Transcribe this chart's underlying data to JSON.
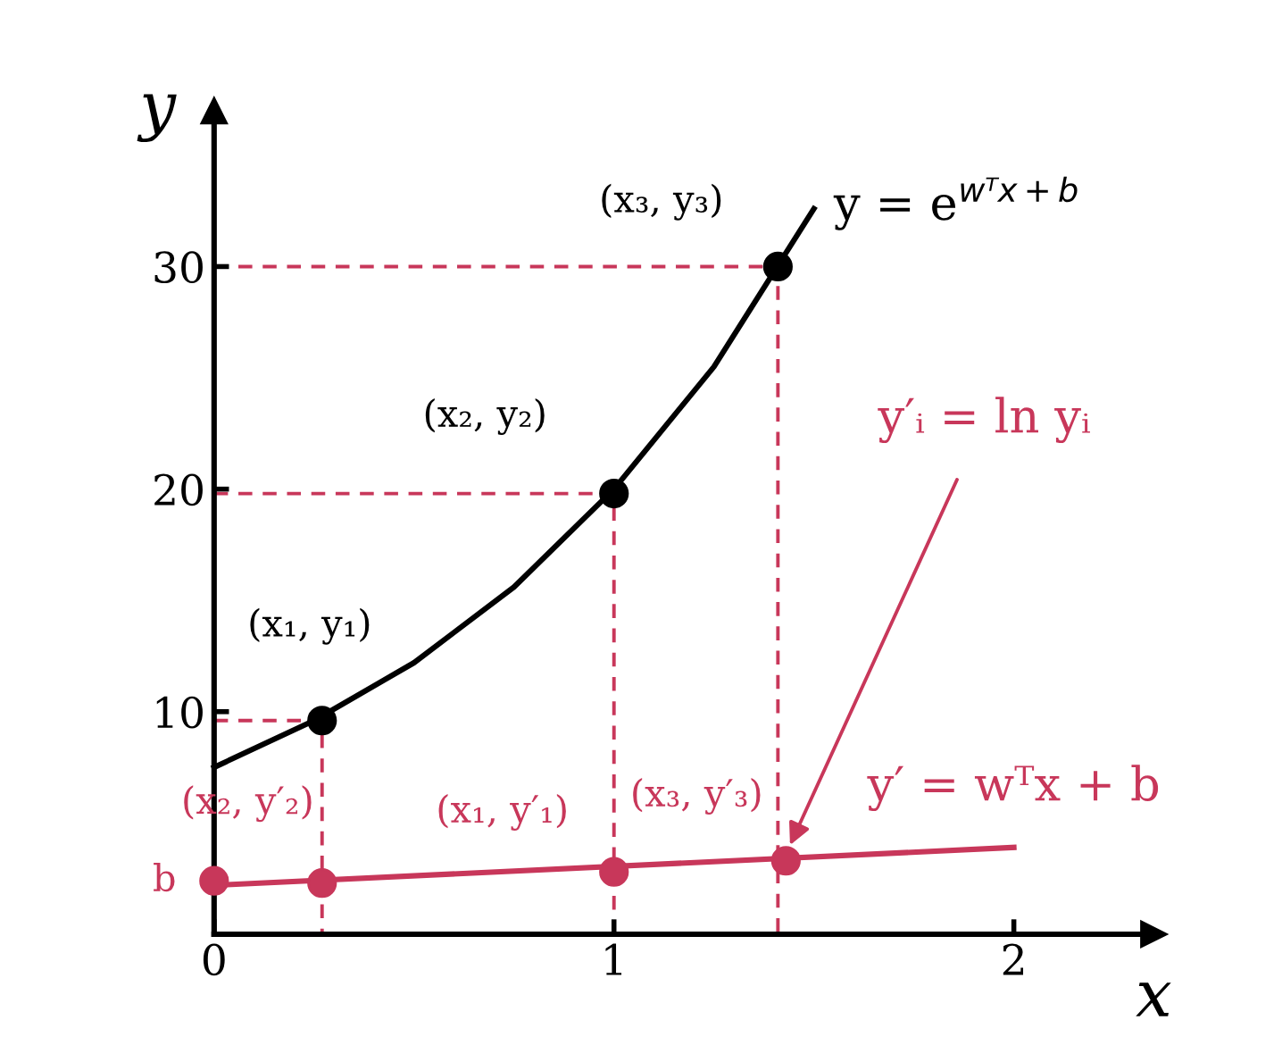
{
  "chart_data": {
    "type": "line",
    "xlabel": "x",
    "ylabel": "y",
    "xlim": [
      0,
      2.35
    ],
    "ylim": [
      0,
      37
    ],
    "xticks": [
      0,
      1,
      2
    ],
    "yticks": [
      10,
      20,
      30
    ],
    "grid": false,
    "legend": false,
    "series": [
      {
        "color": "#000000",
        "x": [
          0,
          0.25,
          0.5,
          0.75,
          1.0,
          1.25,
          1.5
        ],
        "values": [
          7.5,
          9.6,
          12.2,
          15.6,
          20.0,
          25.5,
          32.6
        ]
      },
      {
        "type": "scatter",
        "marker": "circle",
        "color": "#000000",
        "x": [
          0.27,
          1.0,
          1.41
        ],
        "values": [
          9.6,
          19.8,
          30
        ]
      },
      {
        "color": "#c8375a",
        "x": [
          0,
          2
        ],
        "values": [
          2.2,
          3.9
        ]
      },
      {
        "type": "scatter",
        "marker": "circle",
        "color": "#c8375a",
        "x": [
          0,
          0.27,
          1.0,
          1.43
        ],
        "values": [
          2.4,
          2.3,
          2.8,
          3.3
        ]
      },
      {
        "type": "line",
        "line_style": "dashed",
        "color": "#c8375a",
        "x": [
          0,
          0.27,
          0.27
        ],
        "values": [
          9.6,
          9.6,
          0
        ]
      },
      {
        "type": "line",
        "line_style": "dashed",
        "color": "#c8375a",
        "x": [
          0,
          1.0,
          1.0
        ],
        "values": [
          19.8,
          19.8,
          0
        ]
      },
      {
        "type": "line",
        "line_style": "dashed",
        "color": "#c8375a",
        "x": [
          0,
          1.41,
          1.41
        ],
        "values": [
          30,
          30,
          0
        ]
      }
    ],
    "annotations": [
      {
        "text": "(x₁, y₁)",
        "x": 0.27,
        "y": 9.6
      },
      {
        "text": "(x₂, y₂)",
        "x": 1.0,
        "y": 19.8
      },
      {
        "text": "(x₃, y₃)",
        "x": 1.41,
        "y": 30
      },
      {
        "text": "y = e$^{wᵀx+b}$",
        "x": 1.5,
        "y": 32.6
      },
      {
        "text": "(x₂, y′₂)",
        "x": 0.27,
        "y": 2.3
      },
      {
        "text": "(x₁, y′₁)",
        "x": 1.0,
        "y": 2.8
      },
      {
        "text": "(x₃, y′₃)",
        "x": 1.43,
        "y": 3.3
      },
      {
        "text": "y′ = wᵀx + b",
        "x": 2,
        "y": 3.9
      },
      {
        "text": "y′ᵢ = ln yᵢ",
        "x": 1.43,
        "y": 3.6
      },
      {
        "text": "b",
        "x": 0,
        "y": 2.4
      }
    ]
  }
}
